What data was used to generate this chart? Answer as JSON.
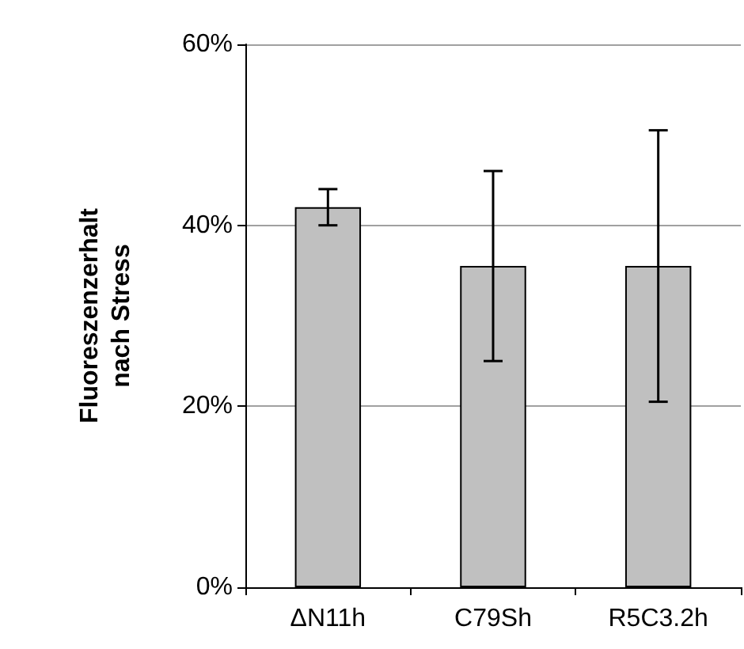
{
  "chart_data": {
    "type": "bar",
    "ylabel": "Fluoreszenzerhalt\nnach Stress",
    "categories": [
      "ΔN11h",
      "C79Sh",
      "R5C3.2h"
    ],
    "values": [
      42,
      35.5,
      35.5
    ],
    "color": "#c0c0c0",
    "errors": [
      [
        40,
        44
      ],
      [
        25,
        46
      ],
      [
        20.5,
        50.5
      ]
    ],
    "ylim": [
      0,
      60
    ],
    "yticks": [
      {
        "value": 0,
        "label": "0%"
      },
      {
        "value": 20,
        "label": "20%"
      },
      {
        "value": 40,
        "label": "40%"
      },
      {
        "value": 60,
        "label": "60%"
      }
    ],
    "grid": "y"
  }
}
